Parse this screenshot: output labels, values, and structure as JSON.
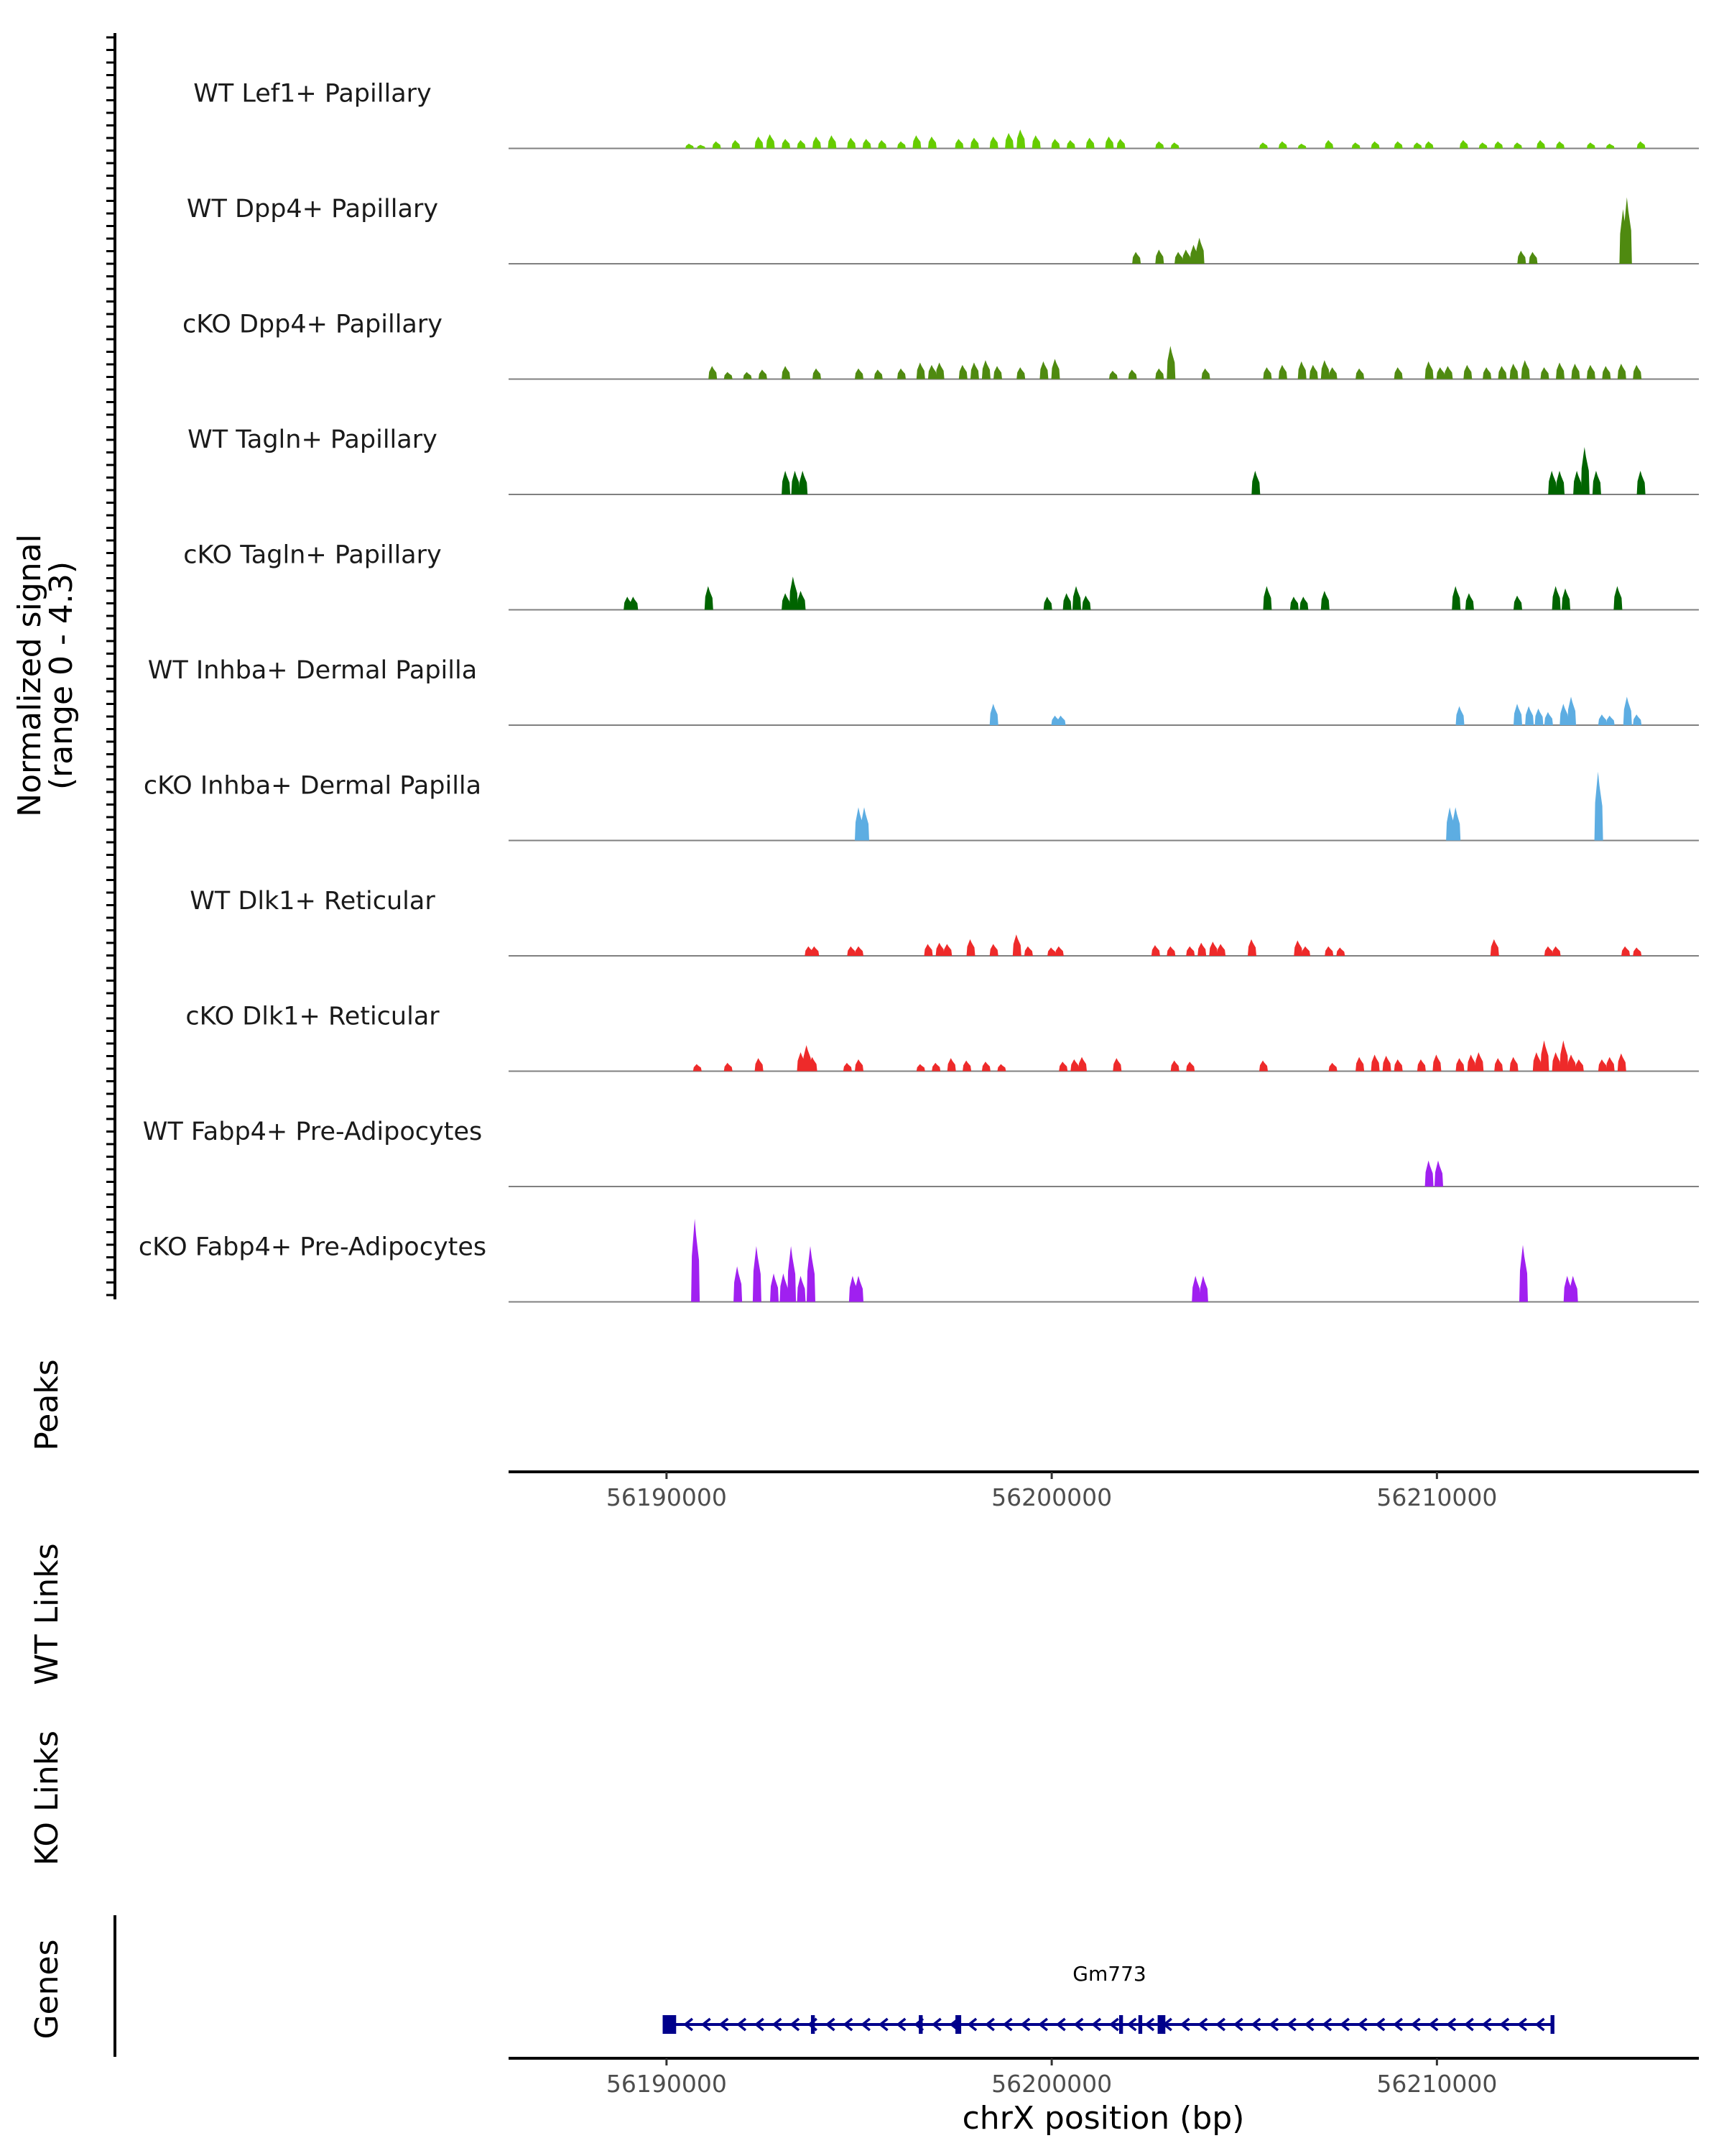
{
  "chart_data": {
    "type": "area",
    "title": "",
    "xlabel": "chrX position (bp)",
    "ylabel": "Normalized signal\n(range 0 - 4.3)",
    "y_range": [
      0,
      4.3
    ],
    "x_range": [
      56185900,
      56216800
    ],
    "x_ticks": [
      {
        "value": 56190000,
        "label": "56190000"
      },
      {
        "value": 56200000,
        "label": "56200000"
      },
      {
        "value": 56210000,
        "label": "56210000"
      }
    ],
    "side_panels": {
      "peaks": "Peaks",
      "wt_links": "WT Links",
      "ko_links": "KO Links",
      "genes": "Genes"
    },
    "gene": {
      "name": "Gm773",
      "start": 56190000,
      "end": 56213000,
      "strand": "-",
      "color": "#00008B",
      "exons": [
        [
          56189900,
          56190250
        ],
        [
          56193750,
          56193850
        ],
        [
          56196550,
          56196650
        ],
        [
          56197500,
          56197650
        ],
        [
          56201750,
          56201850
        ],
        [
          56202250,
          56202350
        ],
        [
          56202750,
          56202950
        ],
        [
          56212950,
          56213050
        ]
      ]
    },
    "series": [
      {
        "name": "WT Lef1+ Papillary",
        "color": "#66CC00",
        "peaks": [
          [
            56190600,
            0.2
          ],
          [
            56190900,
            0.15
          ],
          [
            56191300,
            0.3
          ],
          [
            56191800,
            0.35
          ],
          [
            56192400,
            0.5
          ],
          [
            56192700,
            0.6
          ],
          [
            56193100,
            0.4
          ],
          [
            56193500,
            0.35
          ],
          [
            56193900,
            0.5
          ],
          [
            56194300,
            0.55
          ],
          [
            56194800,
            0.45
          ],
          [
            56195200,
            0.4
          ],
          [
            56195600,
            0.35
          ],
          [
            56196100,
            0.3
          ],
          [
            56196500,
            0.55
          ],
          [
            56196900,
            0.5
          ],
          [
            56197600,
            0.4
          ],
          [
            56198000,
            0.45
          ],
          [
            56198500,
            0.5
          ],
          [
            56198900,
            0.65
          ],
          [
            56199200,
            0.8
          ],
          [
            56199600,
            0.55
          ],
          [
            56200100,
            0.4
          ],
          [
            56200500,
            0.35
          ],
          [
            56201000,
            0.45
          ],
          [
            56201500,
            0.5
          ],
          [
            56201800,
            0.4
          ],
          [
            56202800,
            0.3
          ],
          [
            56203200,
            0.25
          ],
          [
            56205500,
            0.25
          ],
          [
            56206000,
            0.3
          ],
          [
            56206500,
            0.2
          ],
          [
            56207200,
            0.35
          ],
          [
            56207900,
            0.25
          ],
          [
            56208400,
            0.3
          ],
          [
            56209000,
            0.3
          ],
          [
            56209500,
            0.25
          ],
          [
            56209800,
            0.3
          ],
          [
            56210700,
            0.35
          ],
          [
            56211200,
            0.25
          ],
          [
            56211600,
            0.3
          ],
          [
            56212100,
            0.25
          ],
          [
            56212700,
            0.35
          ],
          [
            56213200,
            0.3
          ],
          [
            56214000,
            0.25
          ],
          [
            56214500,
            0.2
          ],
          [
            56215300,
            0.3
          ]
        ]
      },
      {
        "name": "WT Dpp4+ Papillary",
        "color": "#4F8A10",
        "peaks": [
          [
            56202200,
            0.5
          ],
          [
            56202800,
            0.6
          ],
          [
            56203300,
            0.5
          ],
          [
            56203500,
            0.6
          ],
          [
            56203700,
            0.8
          ],
          [
            56203850,
            1.1
          ],
          [
            56212200,
            0.55
          ],
          [
            56212500,
            0.5
          ],
          [
            56214850,
            2.3
          ],
          [
            56214950,
            2.8
          ]
        ]
      },
      {
        "name": "cKO Dpp4+ Papillary",
        "color": "#4F8A10",
        "peaks": [
          [
            56191200,
            0.55
          ],
          [
            56191600,
            0.3
          ],
          [
            56192100,
            0.3
          ],
          [
            56192500,
            0.4
          ],
          [
            56193100,
            0.55
          ],
          [
            56193900,
            0.45
          ],
          [
            56195000,
            0.45
          ],
          [
            56195500,
            0.4
          ],
          [
            56196100,
            0.45
          ],
          [
            56196600,
            0.7
          ],
          [
            56196900,
            0.6
          ],
          [
            56197100,
            0.7
          ],
          [
            56197700,
            0.6
          ],
          [
            56198000,
            0.7
          ],
          [
            56198300,
            0.8
          ],
          [
            56198600,
            0.55
          ],
          [
            56199200,
            0.5
          ],
          [
            56199800,
            0.75
          ],
          [
            56200100,
            0.85
          ],
          [
            56201600,
            0.35
          ],
          [
            56202100,
            0.4
          ],
          [
            56202800,
            0.45
          ],
          [
            56203100,
            1.4
          ],
          [
            56204000,
            0.45
          ],
          [
            56205600,
            0.5
          ],
          [
            56206000,
            0.6
          ],
          [
            56206500,
            0.75
          ],
          [
            56206800,
            0.6
          ],
          [
            56207100,
            0.8
          ],
          [
            56207300,
            0.5
          ],
          [
            56208000,
            0.45
          ],
          [
            56209000,
            0.5
          ],
          [
            56209800,
            0.75
          ],
          [
            56210100,
            0.5
          ],
          [
            56210300,
            0.55
          ],
          [
            56210800,
            0.6
          ],
          [
            56211300,
            0.5
          ],
          [
            56211700,
            0.55
          ],
          [
            56212000,
            0.65
          ],
          [
            56212300,
            0.8
          ],
          [
            56212800,
            0.5
          ],
          [
            56213200,
            0.7
          ],
          [
            56213600,
            0.65
          ],
          [
            56214000,
            0.6
          ],
          [
            56214400,
            0.55
          ],
          [
            56214800,
            0.65
          ],
          [
            56215200,
            0.6
          ]
        ]
      },
      {
        "name": "WT Tagln+ Papillary",
        "color": "#006400",
        "peaks": [
          [
            56193100,
            1.0
          ],
          [
            56193350,
            1.0
          ],
          [
            56193550,
            1.0
          ],
          [
            56205300,
            1.0
          ],
          [
            56213000,
            1.0
          ],
          [
            56213200,
            1.0
          ],
          [
            56213650,
            1.0
          ],
          [
            56213850,
            2.0
          ],
          [
            56214150,
            1.0
          ],
          [
            56215300,
            1.0
          ]
        ]
      },
      {
        "name": "cKO Tagln+ Papillary",
        "color": "#006400",
        "peaks": [
          [
            56189000,
            0.55
          ],
          [
            56189150,
            0.55
          ],
          [
            56191100,
            1.0
          ],
          [
            56193100,
            0.7
          ],
          [
            56193300,
            1.4
          ],
          [
            56193500,
            0.8
          ],
          [
            56199900,
            0.55
          ],
          [
            56200400,
            0.7
          ],
          [
            56200650,
            1.0
          ],
          [
            56200900,
            0.6
          ],
          [
            56205600,
            1.0
          ],
          [
            56206300,
            0.55
          ],
          [
            56206550,
            0.55
          ],
          [
            56207100,
            0.8
          ],
          [
            56210500,
            1.0
          ],
          [
            56210850,
            0.7
          ],
          [
            56212100,
            0.6
          ],
          [
            56213100,
            1.0
          ],
          [
            56213350,
            0.9
          ],
          [
            56214700,
            1.0
          ]
        ]
      },
      {
        "name": "WT Inhba+ Dermal Papilla",
        "color": "#5DADE2",
        "peaks": [
          [
            56198500,
            0.9
          ],
          [
            56200100,
            0.4
          ],
          [
            56200250,
            0.4
          ],
          [
            56210600,
            0.8
          ],
          [
            56212100,
            0.9
          ],
          [
            56212400,
            0.8
          ],
          [
            56212650,
            0.7
          ],
          [
            56212900,
            0.55
          ],
          [
            56213300,
            0.9
          ],
          [
            56213500,
            1.2
          ],
          [
            56214300,
            0.45
          ],
          [
            56214500,
            0.4
          ],
          [
            56214950,
            1.2
          ],
          [
            56215200,
            0.45
          ]
        ]
      },
      {
        "name": "cKO Inhba+ Dermal Papilla",
        "color": "#5DADE2",
        "peaks": [
          [
            56195000,
            1.4
          ],
          [
            56195150,
            1.4
          ],
          [
            56210350,
            1.4
          ],
          [
            56210500,
            1.4
          ],
          [
            56214200,
            2.9
          ]
        ]
      },
      {
        "name": "WT Dlk1+ Reticular",
        "color": "#EE2A2A",
        "peaks": [
          [
            56193700,
            0.4
          ],
          [
            56193850,
            0.4
          ],
          [
            56194800,
            0.4
          ],
          [
            56195000,
            0.4
          ],
          [
            56196800,
            0.5
          ],
          [
            56197100,
            0.55
          ],
          [
            56197300,
            0.5
          ],
          [
            56197900,
            0.7
          ],
          [
            56198500,
            0.5
          ],
          [
            56199100,
            0.9
          ],
          [
            56199400,
            0.4
          ],
          [
            56200000,
            0.35
          ],
          [
            56200200,
            0.4
          ],
          [
            56202700,
            0.45
          ],
          [
            56203100,
            0.4
          ],
          [
            56203600,
            0.4
          ],
          [
            56203900,
            0.55
          ],
          [
            56204200,
            0.6
          ],
          [
            56204400,
            0.5
          ],
          [
            56205200,
            0.7
          ],
          [
            56206400,
            0.65
          ],
          [
            56206600,
            0.4
          ],
          [
            56207200,
            0.4
          ],
          [
            56207500,
            0.35
          ],
          [
            56211500,
            0.7
          ],
          [
            56212900,
            0.4
          ],
          [
            56213100,
            0.4
          ],
          [
            56214900,
            0.4
          ],
          [
            56215200,
            0.35
          ]
        ]
      },
      {
        "name": "cKO Dlk1+ Reticular",
        "color": "#EE2A2A",
        "peaks": [
          [
            56190800,
            0.3
          ],
          [
            56191600,
            0.35
          ],
          [
            56192400,
            0.55
          ],
          [
            56193500,
            0.8
          ],
          [
            56193650,
            1.1
          ],
          [
            56193800,
            0.6
          ],
          [
            56194700,
            0.35
          ],
          [
            56195000,
            0.5
          ],
          [
            56196600,
            0.3
          ],
          [
            56197000,
            0.35
          ],
          [
            56197400,
            0.55
          ],
          [
            56197800,
            0.45
          ],
          [
            56198300,
            0.4
          ],
          [
            56198700,
            0.3
          ],
          [
            56200300,
            0.4
          ],
          [
            56200600,
            0.5
          ],
          [
            56200800,
            0.6
          ],
          [
            56201700,
            0.55
          ],
          [
            56203200,
            0.45
          ],
          [
            56203600,
            0.4
          ],
          [
            56205500,
            0.45
          ],
          [
            56207300,
            0.35
          ],
          [
            56208000,
            0.6
          ],
          [
            56208400,
            0.7
          ],
          [
            56208700,
            0.65
          ],
          [
            56209000,
            0.5
          ],
          [
            56209600,
            0.5
          ],
          [
            56210000,
            0.7
          ],
          [
            56210600,
            0.55
          ],
          [
            56210900,
            0.7
          ],
          [
            56211100,
            0.8
          ],
          [
            56211600,
            0.55
          ],
          [
            56212000,
            0.6
          ],
          [
            56212600,
            0.8
          ],
          [
            56212800,
            1.3
          ],
          [
            56213100,
            0.8
          ],
          [
            56213300,
            1.3
          ],
          [
            56213500,
            0.7
          ],
          [
            56213700,
            0.5
          ],
          [
            56214300,
            0.5
          ],
          [
            56214500,
            0.6
          ],
          [
            56214800,
            0.75
          ]
        ]
      },
      {
        "name": "WT Fabp4+ Pre-Adipocytes",
        "color": "#A020F0",
        "peaks": [
          [
            56209800,
            1.1
          ],
          [
            56210050,
            1.1
          ]
        ]
      },
      {
        "name": "cKO Fabp4+ Pre-Adipocytes",
        "color": "#A020F0",
        "peaks": [
          [
            56190750,
            3.5
          ],
          [
            56191850,
            1.5
          ],
          [
            56192350,
            2.35
          ],
          [
            56192800,
            1.2
          ],
          [
            56193050,
            1.2
          ],
          [
            56193250,
            2.35
          ],
          [
            56193500,
            1.1
          ],
          [
            56193750,
            2.35
          ],
          [
            56194850,
            1.1
          ],
          [
            56195000,
            1.1
          ],
          [
            56203750,
            1.1
          ],
          [
            56203950,
            1.1
          ],
          [
            56212250,
            2.4
          ],
          [
            56213400,
            1.1
          ],
          [
            56213550,
            1.1
          ]
        ]
      }
    ]
  }
}
